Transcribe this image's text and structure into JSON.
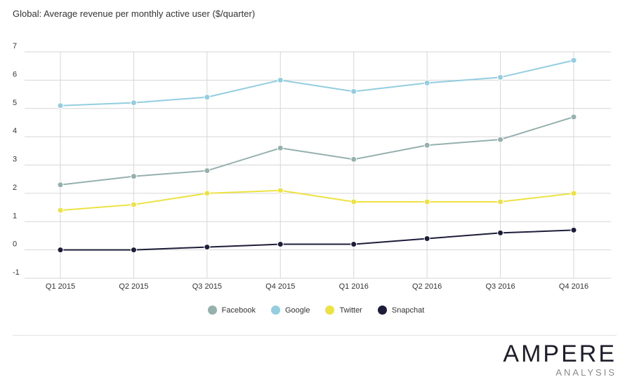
{
  "chart_data": {
    "type": "line",
    "title": "Global: Average revenue per monthly active user ($/quarter)",
    "xlabel": "",
    "ylabel": "",
    "categories": [
      "Q1 2015",
      "Q2 2015",
      "Q3 2015",
      "Q4 2015",
      "Q1 2016",
      "Q2 2016",
      "Q3 2016",
      "Q4 2016"
    ],
    "yticks": [
      "-1",
      "0",
      "1",
      "2",
      "3",
      "4",
      "5",
      "6",
      "7"
    ],
    "ylim": [
      -1,
      7
    ],
    "grid": true,
    "legend_position": "bottom-center",
    "series": [
      {
        "name": "Facebook",
        "color": "#95b1ae",
        "values": [
          2.3,
          2.6,
          2.8,
          3.6,
          3.2,
          3.7,
          3.9,
          4.7
        ]
      },
      {
        "name": "Google",
        "color": "#93cde0",
        "values": [
          5.1,
          5.2,
          5.4,
          6.0,
          5.6,
          5.9,
          6.1,
          6.7
        ]
      },
      {
        "name": "Twitter",
        "color": "#ede244",
        "values": [
          1.4,
          1.6,
          2.0,
          2.1,
          1.7,
          1.7,
          1.7,
          2.0
        ]
      },
      {
        "name": "Snapchat",
        "color": "#1d1d3a",
        "values": [
          0.0,
          0.0,
          0.1,
          0.2,
          0.2,
          0.4,
          0.6,
          0.7
        ]
      }
    ]
  },
  "branding": {
    "logo_main": "AMPERE",
    "logo_sub": "ANALYSIS"
  }
}
